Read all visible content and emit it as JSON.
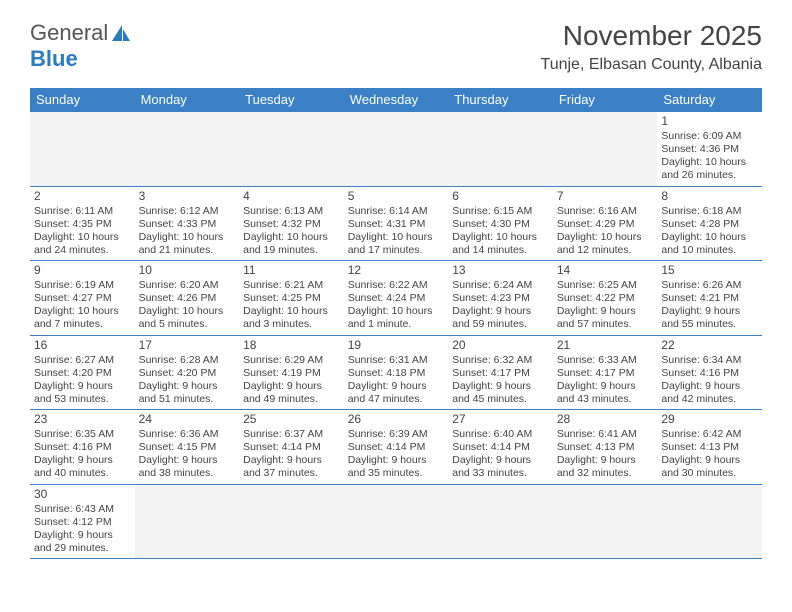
{
  "logo": {
    "text1": "General",
    "text2": "Blue"
  },
  "title": "November 2025",
  "location": "Tunje, Elbasan County, Albania",
  "colors": {
    "header_bg": "#3a80c4",
    "header_text": "#ffffff",
    "border": "#3a80c4",
    "empty_bg": "#f3f3f3",
    "text": "#444444",
    "logo_blue": "#2b7bbf"
  },
  "day_headers": [
    "Sunday",
    "Monday",
    "Tuesday",
    "Wednesday",
    "Thursday",
    "Friday",
    "Saturday"
  ],
  "weeks": [
    [
      null,
      null,
      null,
      null,
      null,
      null,
      {
        "n": "1",
        "sr": "Sunrise: 6:09 AM",
        "ss": "Sunset: 4:36 PM",
        "dl": "Daylight: 10 hours and 26 minutes."
      }
    ],
    [
      {
        "n": "2",
        "sr": "Sunrise: 6:11 AM",
        "ss": "Sunset: 4:35 PM",
        "dl": "Daylight: 10 hours and 24 minutes."
      },
      {
        "n": "3",
        "sr": "Sunrise: 6:12 AM",
        "ss": "Sunset: 4:33 PM",
        "dl": "Daylight: 10 hours and 21 minutes."
      },
      {
        "n": "4",
        "sr": "Sunrise: 6:13 AM",
        "ss": "Sunset: 4:32 PM",
        "dl": "Daylight: 10 hours and 19 minutes."
      },
      {
        "n": "5",
        "sr": "Sunrise: 6:14 AM",
        "ss": "Sunset: 4:31 PM",
        "dl": "Daylight: 10 hours and 17 minutes."
      },
      {
        "n": "6",
        "sr": "Sunrise: 6:15 AM",
        "ss": "Sunset: 4:30 PM",
        "dl": "Daylight: 10 hours and 14 minutes."
      },
      {
        "n": "7",
        "sr": "Sunrise: 6:16 AM",
        "ss": "Sunset: 4:29 PM",
        "dl": "Daylight: 10 hours and 12 minutes."
      },
      {
        "n": "8",
        "sr": "Sunrise: 6:18 AM",
        "ss": "Sunset: 4:28 PM",
        "dl": "Daylight: 10 hours and 10 minutes."
      }
    ],
    [
      {
        "n": "9",
        "sr": "Sunrise: 6:19 AM",
        "ss": "Sunset: 4:27 PM",
        "dl": "Daylight: 10 hours and 7 minutes."
      },
      {
        "n": "10",
        "sr": "Sunrise: 6:20 AM",
        "ss": "Sunset: 4:26 PM",
        "dl": "Daylight: 10 hours and 5 minutes."
      },
      {
        "n": "11",
        "sr": "Sunrise: 6:21 AM",
        "ss": "Sunset: 4:25 PM",
        "dl": "Daylight: 10 hours and 3 minutes."
      },
      {
        "n": "12",
        "sr": "Sunrise: 6:22 AM",
        "ss": "Sunset: 4:24 PM",
        "dl": "Daylight: 10 hours and 1 minute."
      },
      {
        "n": "13",
        "sr": "Sunrise: 6:24 AM",
        "ss": "Sunset: 4:23 PM",
        "dl": "Daylight: 9 hours and 59 minutes."
      },
      {
        "n": "14",
        "sr": "Sunrise: 6:25 AM",
        "ss": "Sunset: 4:22 PM",
        "dl": "Daylight: 9 hours and 57 minutes."
      },
      {
        "n": "15",
        "sr": "Sunrise: 6:26 AM",
        "ss": "Sunset: 4:21 PM",
        "dl": "Daylight: 9 hours and 55 minutes."
      }
    ],
    [
      {
        "n": "16",
        "sr": "Sunrise: 6:27 AM",
        "ss": "Sunset: 4:20 PM",
        "dl": "Daylight: 9 hours and 53 minutes."
      },
      {
        "n": "17",
        "sr": "Sunrise: 6:28 AM",
        "ss": "Sunset: 4:20 PM",
        "dl": "Daylight: 9 hours and 51 minutes."
      },
      {
        "n": "18",
        "sr": "Sunrise: 6:29 AM",
        "ss": "Sunset: 4:19 PM",
        "dl": "Daylight: 9 hours and 49 minutes."
      },
      {
        "n": "19",
        "sr": "Sunrise: 6:31 AM",
        "ss": "Sunset: 4:18 PM",
        "dl": "Daylight: 9 hours and 47 minutes."
      },
      {
        "n": "20",
        "sr": "Sunrise: 6:32 AM",
        "ss": "Sunset: 4:17 PM",
        "dl": "Daylight: 9 hours and 45 minutes."
      },
      {
        "n": "21",
        "sr": "Sunrise: 6:33 AM",
        "ss": "Sunset: 4:17 PM",
        "dl": "Daylight: 9 hours and 43 minutes."
      },
      {
        "n": "22",
        "sr": "Sunrise: 6:34 AM",
        "ss": "Sunset: 4:16 PM",
        "dl": "Daylight: 9 hours and 42 minutes."
      }
    ],
    [
      {
        "n": "23",
        "sr": "Sunrise: 6:35 AM",
        "ss": "Sunset: 4:16 PM",
        "dl": "Daylight: 9 hours and 40 minutes."
      },
      {
        "n": "24",
        "sr": "Sunrise: 6:36 AM",
        "ss": "Sunset: 4:15 PM",
        "dl": "Daylight: 9 hours and 38 minutes."
      },
      {
        "n": "25",
        "sr": "Sunrise: 6:37 AM",
        "ss": "Sunset: 4:14 PM",
        "dl": "Daylight: 9 hours and 37 minutes."
      },
      {
        "n": "26",
        "sr": "Sunrise: 6:39 AM",
        "ss": "Sunset: 4:14 PM",
        "dl": "Daylight: 9 hours and 35 minutes."
      },
      {
        "n": "27",
        "sr": "Sunrise: 6:40 AM",
        "ss": "Sunset: 4:14 PM",
        "dl": "Daylight: 9 hours and 33 minutes."
      },
      {
        "n": "28",
        "sr": "Sunrise: 6:41 AM",
        "ss": "Sunset: 4:13 PM",
        "dl": "Daylight: 9 hours and 32 minutes."
      },
      {
        "n": "29",
        "sr": "Sunrise: 6:42 AM",
        "ss": "Sunset: 4:13 PM",
        "dl": "Daylight: 9 hours and 30 minutes."
      }
    ],
    [
      {
        "n": "30",
        "sr": "Sunrise: 6:43 AM",
        "ss": "Sunset: 4:12 PM",
        "dl": "Daylight: 9 hours and 29 minutes."
      },
      null,
      null,
      null,
      null,
      null,
      null
    ]
  ]
}
